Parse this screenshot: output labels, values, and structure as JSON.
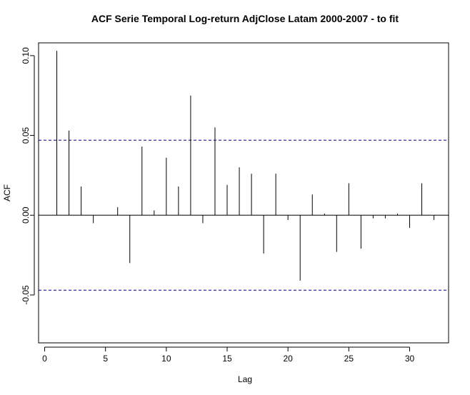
{
  "chart_data": {
    "type": "bar",
    "title": "ACF Serie Temporal Log-return AdjClose Latam 2000-2007 - to fit",
    "xlabel": "Lag",
    "ylabel": "ACF",
    "xlim": [
      -0.5,
      33.2
    ],
    "ylim": [
      -0.08,
      0.108
    ],
    "x_ticks": [
      0,
      5,
      10,
      15,
      20,
      25,
      30
    ],
    "y_ticks": [
      -0.05,
      0.0,
      0.05,
      0.1
    ],
    "y_tick_labels": [
      "-0.05",
      "0.00",
      "0.05",
      "0.10"
    ],
    "confidence_bound": 0.047,
    "lags": [
      1,
      2,
      3,
      4,
      5,
      6,
      7,
      8,
      9,
      10,
      11,
      12,
      13,
      14,
      15,
      16,
      17,
      18,
      19,
      20,
      21,
      22,
      23,
      24,
      25,
      26,
      27,
      28,
      29,
      30,
      31,
      32
    ],
    "values": [
      0.103,
      0.053,
      0.018,
      -0.005,
      0.0,
      0.005,
      -0.03,
      0.043,
      0.003,
      0.036,
      0.018,
      0.075,
      -0.005,
      0.055,
      0.019,
      0.03,
      0.026,
      -0.024,
      0.026,
      -0.003,
      -0.041,
      0.013,
      0.001,
      -0.023,
      0.02,
      -0.021,
      -0.002,
      -0.002,
      0.001,
      -0.008,
      0.02,
      -0.003
    ],
    "colors": {
      "bars": "#000000",
      "bounds": "#00008b",
      "frame": "#000000"
    }
  }
}
